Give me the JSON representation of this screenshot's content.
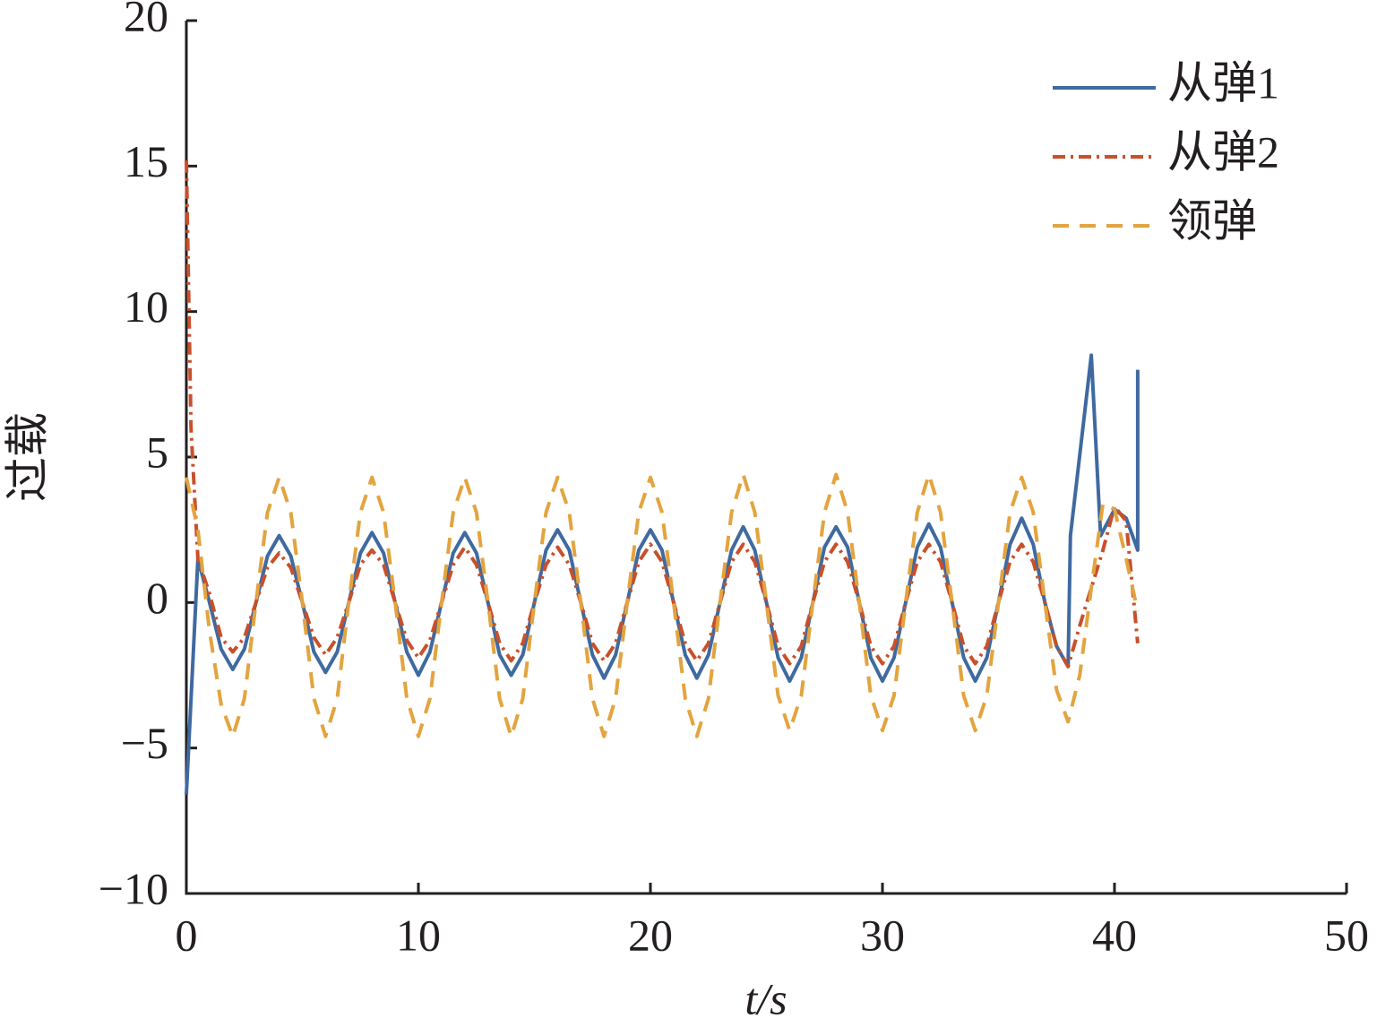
{
  "chart_data": {
    "type": "line",
    "xlabel": "t/s",
    "ylabel": "过载",
    "xlim": [
      0,
      50
    ],
    "xticks": [
      0,
      10,
      20,
      30,
      40,
      50
    ],
    "ylim": [
      -10,
      20
    ],
    "yticks": [
      {
        "value": -10,
        "label": "−10"
      },
      {
        "value": -5,
        "label": "−5"
      },
      0,
      5,
      10,
      15,
      20
    ],
    "legend": "upper right",
    "series": [
      {
        "name": "从弹1",
        "color": "#3f6aa0",
        "dash": "solid",
        "x": [
          0,
          0.5,
          1,
          1.5,
          2,
          2.5,
          3,
          3.5,
          4,
          4.5,
          5,
          5.5,
          6,
          6.5,
          7,
          7.5,
          8,
          8.5,
          9,
          9.5,
          10,
          10.5,
          11,
          11.5,
          12,
          12.5,
          13,
          13.5,
          14,
          14.5,
          15,
          15.5,
          16,
          16.5,
          17,
          17.5,
          18,
          18.5,
          19,
          19.5,
          20,
          20.5,
          21,
          21.5,
          22,
          22.5,
          23,
          23.5,
          24,
          24.5,
          25,
          25.5,
          26,
          26.5,
          27,
          27.5,
          28,
          28.5,
          29,
          29.5,
          30,
          30.5,
          31,
          31.5,
          32,
          32.5,
          33,
          33.5,
          34,
          34.5,
          35,
          35.5,
          36,
          36.5,
          37,
          37.5,
          38,
          38.1,
          39,
          39.4,
          40,
          40.5,
          41,
          41
        ],
        "values": [
          -6.6,
          1.5,
          0,
          -1.6,
          -2.3,
          -1.6,
          0,
          1.6,
          2.3,
          1.6,
          0,
          -1.7,
          -2.4,
          -1.7,
          0,
          1.7,
          2.4,
          1.7,
          0,
          -1.7,
          -2.5,
          -1.7,
          0,
          1.7,
          2.4,
          1.7,
          0,
          -1.8,
          -2.5,
          -1.8,
          0,
          1.8,
          2.5,
          1.8,
          0,
          -1.8,
          -2.6,
          -1.8,
          0,
          1.8,
          2.5,
          1.8,
          0,
          -1.8,
          -2.6,
          -1.8,
          0,
          1.8,
          2.6,
          1.8,
          0,
          -1.9,
          -2.7,
          -1.9,
          0,
          1.9,
          2.6,
          1.9,
          0,
          -1.9,
          -2.7,
          -1.9,
          0,
          1.9,
          2.7,
          1.9,
          0,
          -1.9,
          -2.7,
          -1.9,
          0,
          2.0,
          2.9,
          2.0,
          0,
          -1.5,
          -2.2,
          2.3,
          8.5,
          2.3,
          3.2,
          2.9,
          1.8,
          8.0
        ]
      },
      {
        "name": "从弹2",
        "color": "#c8502a",
        "dash": "dashdot",
        "x": [
          0,
          0.2,
          0.5,
          1,
          1.5,
          2,
          2.5,
          3,
          3.5,
          4,
          4.5,
          5,
          5.5,
          6,
          6.5,
          7,
          7.5,
          8,
          8.5,
          9,
          9.5,
          10,
          10.5,
          11,
          11.5,
          12,
          12.5,
          13,
          13.5,
          14,
          14.5,
          15,
          15.5,
          16,
          16.5,
          17,
          17.5,
          18,
          18.5,
          19,
          19.5,
          20,
          20.5,
          21,
          21.5,
          22,
          22.5,
          23,
          23.5,
          24,
          24.5,
          25,
          25.5,
          26,
          26.5,
          27,
          27.5,
          28,
          28.5,
          29,
          29.5,
          30,
          30.5,
          31,
          31.5,
          32,
          32.5,
          33,
          33.5,
          34,
          34.5,
          35,
          35.5,
          36,
          36.5,
          37,
          37.5,
          38,
          38.5,
          39,
          39.5,
          40,
          40.5,
          41
        ],
        "values": [
          15.2,
          6.0,
          1.5,
          0.3,
          -1.2,
          -1.7,
          -1.2,
          0,
          1.2,
          1.7,
          1.2,
          0,
          -1.2,
          -1.8,
          -1.2,
          0,
          1.3,
          1.8,
          1.3,
          0,
          -1.3,
          -1.9,
          -1.3,
          0,
          1.3,
          1.9,
          1.3,
          0,
          -1.4,
          -2.0,
          -1.4,
          0,
          1.3,
          1.9,
          1.3,
          0,
          -1.4,
          -2.0,
          -1.4,
          0,
          1.4,
          2.0,
          1.4,
          0,
          -1.4,
          -2.0,
          -1.4,
          0,
          1.4,
          2.0,
          1.4,
          0,
          -1.5,
          -2.1,
          -1.5,
          0,
          1.4,
          2.0,
          1.4,
          0,
          -1.5,
          -2.1,
          -1.5,
          0,
          1.4,
          2.0,
          1.4,
          0,
          -1.5,
          -2.1,
          -1.5,
          0,
          1.4,
          2.0,
          1.4,
          0,
          -1.5,
          -2.2,
          -0.8,
          0.5,
          1.8,
          3.3,
          2.8,
          -1.4
        ]
      },
      {
        "name": "领弹",
        "color": "#e3a43f",
        "dash": "dashed",
        "x": [
          0,
          0.5,
          1,
          1.5,
          2,
          2.5,
          3,
          3.5,
          4,
          4.5,
          5,
          5.5,
          6,
          6.5,
          7,
          7.5,
          8,
          8.5,
          9,
          9.5,
          10,
          10.5,
          11,
          11.5,
          12,
          12.5,
          13,
          13.5,
          14,
          14.5,
          15,
          15.5,
          16,
          16.5,
          17,
          17.5,
          18,
          18.5,
          19,
          19.5,
          20,
          20.5,
          21,
          21.5,
          22,
          22.5,
          23,
          23.5,
          24,
          24.5,
          25,
          25.5,
          26,
          26.5,
          27,
          27.5,
          28,
          28.5,
          29,
          29.5,
          30,
          30.5,
          31,
          31.5,
          32,
          32.5,
          33,
          33.5,
          34,
          34.5,
          35,
          35.5,
          36,
          36.5,
          37,
          37.5,
          38,
          38.5,
          39,
          39.5,
          40,
          40.5,
          41
        ],
        "values": [
          4.3,
          2.5,
          -1.0,
          -3.5,
          -4.6,
          -3.3,
          0,
          3.1,
          4.3,
          3.1,
          0,
          -3.3,
          -4.6,
          -3.3,
          0,
          3.1,
          4.3,
          3.1,
          0,
          -3.3,
          -4.6,
          -3.3,
          0,
          3.1,
          4.3,
          3.1,
          0,
          -3.3,
          -4.6,
          -3.3,
          0,
          3.1,
          4.3,
          3.1,
          0,
          -3.3,
          -4.6,
          -3.3,
          0,
          3.1,
          4.3,
          3.1,
          0,
          -3.3,
          -4.6,
          -3.3,
          0,
          3.1,
          4.4,
          3.1,
          0,
          -3.2,
          -4.4,
          -3.2,
          0,
          3.1,
          4.4,
          3.1,
          0,
          -3.2,
          -4.4,
          -3.2,
          0,
          3.1,
          4.4,
          3.1,
          0,
          -3.2,
          -4.4,
          -3.2,
          0,
          3.1,
          4.3,
          3.1,
          0,
          -3.0,
          -4.1,
          -2.5,
          0.5,
          3.4,
          3.2,
          1.5,
          -0.3
        ]
      }
    ]
  }
}
